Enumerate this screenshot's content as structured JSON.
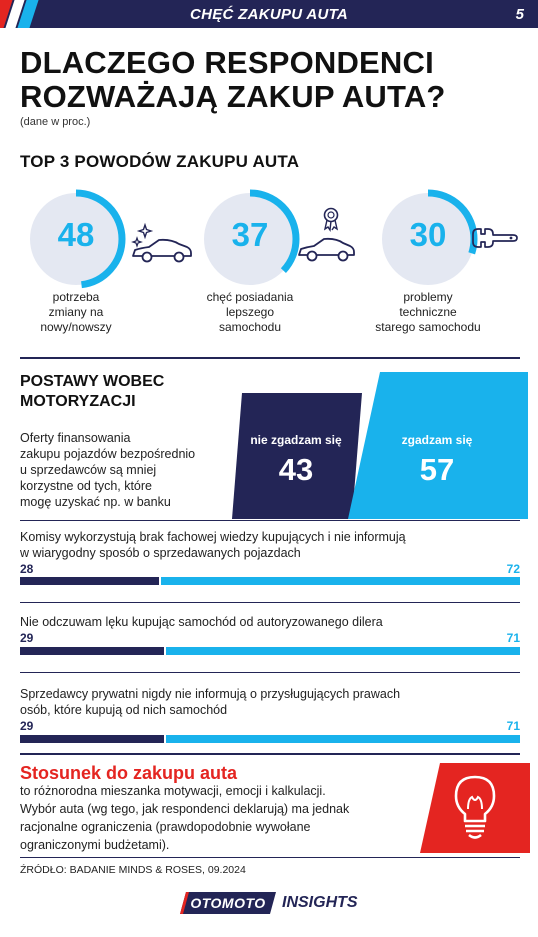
{
  "header": {
    "title": "CHĘĆ ZAKUPU AUTA",
    "page_number": "5"
  },
  "headline": {
    "line1": "DLACZEGO RESPONDENCI",
    "line2": "ROZWAŻAJĄ ZAKUP AUTA?",
    "unit_note": "(dane w proc.)"
  },
  "top_reasons": {
    "title": "TOP 3 POWODÓW ZAKUPU AUTA",
    "items": [
      {
        "value": "48",
        "fraction": 0.48,
        "label_lines": [
          "potrzeba",
          "zmiany na",
          "nowy/nowszy"
        ],
        "icon": "shiny-car-icon"
      },
      {
        "value": "37",
        "fraction": 0.37,
        "label_lines": [
          "chęć posiadania",
          "lepszego",
          "samochodu"
        ],
        "icon": "award-car-icon"
      },
      {
        "value": "30",
        "fraction": 0.3,
        "label_lines": [
          "problemy",
          "techniczne",
          "starego samochodu"
        ],
        "icon": "wrench-icon"
      }
    ]
  },
  "attitudes": {
    "title_line1": "POSTAWY WOBEC",
    "title_line2": "MOTORYZACJI",
    "featured": {
      "statement_lines": [
        "Oferty finansowania",
        "zakupu pojazdów bezpośrednio",
        "u sprzedawców są mniej",
        "korzystne od tych, które",
        "mogę uzyskać np. w banku"
      ],
      "disagree_label": "nie zgadzam się",
      "disagree_value": "43",
      "agree_label": "zgadzam się",
      "agree_value": "57"
    },
    "statements": [
      {
        "text_lines": [
          "Komisy wykorzystują brak fachowej wiedzy kupujących i nie informują",
          "w wiarygodny sposób o sprzedawanych pojazdach"
        ],
        "disagree": "28",
        "agree": "72",
        "disagree_pct": 28
      },
      {
        "text_lines": [
          "Nie odczuwam lęku kupując samochód od autoryzowanego dilera"
        ],
        "disagree": "29",
        "agree": "71",
        "disagree_pct": 29
      },
      {
        "text_lines": [
          "Sprzedawcy prywatni nigdy nie informują o przysługujących prawach",
          "osób, które kupują od nich samochód"
        ],
        "disagree": "29",
        "agree": "71",
        "disagree_pct": 29
      }
    ]
  },
  "conclusion": {
    "title": "Stosunek do zakupu auta",
    "lines": [
      "to różnorodna mieszanka motywacji, emocji i kalkulacji.",
      "Wybór auta (wg tego, jak respondenci deklarują) ma jednak",
      "racjonalne ograniczenia (prawdopodobnie wywołane",
      "ograniczonymi budżetami)."
    ],
    "icon": "lightbulb-icon"
  },
  "source": "ŹRÓDŁO: BADANIE MINDS & ROSES, 09.2024",
  "brand": {
    "name": "OTOMOTO",
    "suffix": "INSIGHTS"
  },
  "colors": {
    "navy": "#232556",
    "blue": "#19b2ec",
    "red": "#e42521",
    "ring_bg": "#e4e8f2"
  }
}
